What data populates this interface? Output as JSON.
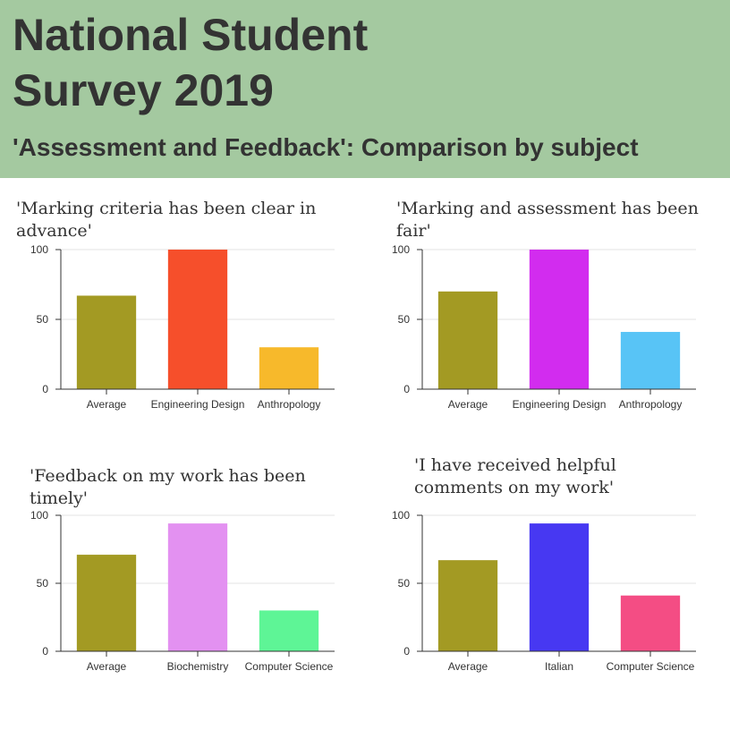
{
  "header": {
    "title": "National Student Survey 2019",
    "subtitle": "'Assessment and Feedback': Comparison by subject",
    "background": "#a4c9a0"
  },
  "chart_data": [
    {
      "type": "bar",
      "title": "'Marking criteria has been clear in advance'",
      "categories": [
        "Average",
        "Engineering Design",
        "Anthropology"
      ],
      "values": [
        67,
        100,
        30
      ],
      "colors": [
        "#a39a23",
        "#f64f2b",
        "#f7b92b"
      ],
      "ylim": [
        0,
        100
      ],
      "yticks": [
        0,
        50,
        100
      ],
      "grid": true
    },
    {
      "type": "bar",
      "title": "'Marking and assessment has been fair'",
      "categories": [
        "Average",
        "Engineering Design",
        "Anthropology"
      ],
      "values": [
        70,
        100,
        41
      ],
      "colors": [
        "#a39a23",
        "#d22cef",
        "#58c4f6"
      ],
      "ylim": [
        0,
        100
      ],
      "yticks": [
        0,
        50,
        100
      ],
      "grid": true
    },
    {
      "type": "bar",
      "title": "'Feedback on my work has been timely'",
      "categories": [
        "Average",
        "Biochemistry",
        "Computer Science"
      ],
      "values": [
        71,
        94,
        30
      ],
      "colors": [
        "#a39a23",
        "#e391f1",
        "#5ef596"
      ],
      "ylim": [
        0,
        100
      ],
      "yticks": [
        0,
        50,
        100
      ],
      "grid": true
    },
    {
      "type": "bar",
      "title": "'I have received helpful comments on my work'",
      "categories": [
        "Average",
        "Italian",
        "Computer Science"
      ],
      "values": [
        67,
        94,
        41
      ],
      "colors": [
        "#a39a23",
        "#4738f2",
        "#f44d84"
      ],
      "ylim": [
        0,
        100
      ],
      "yticks": [
        0,
        50,
        100
      ],
      "grid": true
    }
  ]
}
